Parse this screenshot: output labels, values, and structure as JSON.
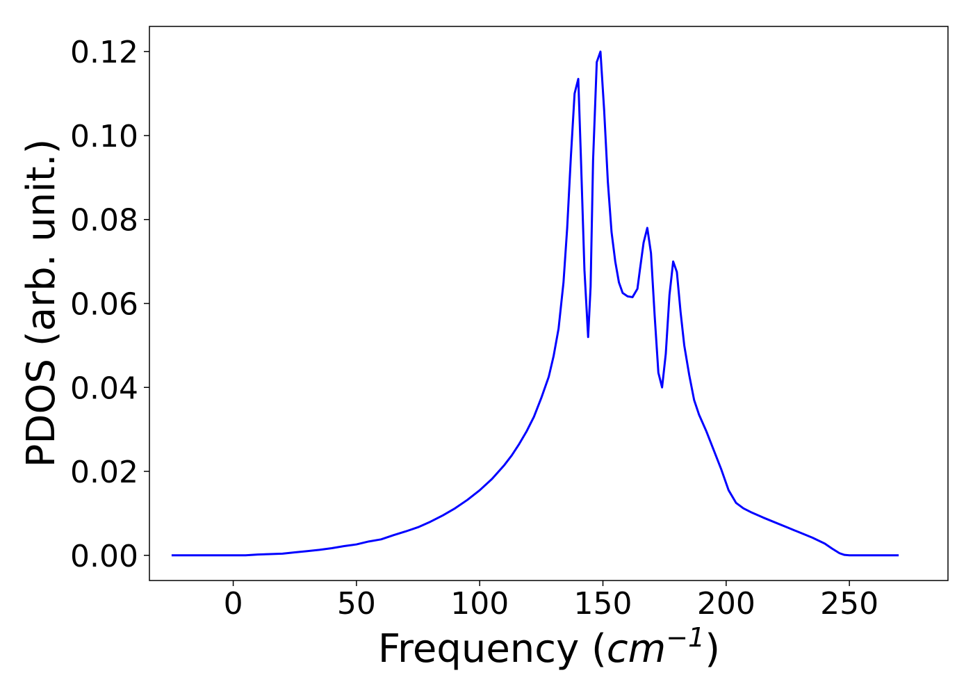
{
  "chart_data": {
    "type": "line",
    "xlabel": {
      "prefix": "Frequency (",
      "unit_base": "cm",
      "unit_exp": "−1",
      "suffix": ")"
    },
    "ylabel": "PDOS (arb. unit.)",
    "xlim": [
      -34,
      290
    ],
    "ylim": [
      -0.006,
      0.126
    ],
    "x_ticks": [
      0,
      50,
      100,
      150,
      200,
      250
    ],
    "x_tick_labels": [
      "0",
      "50",
      "100",
      "150",
      "200",
      "250"
    ],
    "y_ticks": [
      0.0,
      0.02,
      0.04,
      0.06,
      0.08,
      0.1,
      0.12
    ],
    "y_tick_labels": [
      "0.00",
      "0.02",
      "0.04",
      "0.06",
      "0.08",
      "0.10",
      "0.12"
    ],
    "grid": false,
    "legend": "none",
    "series": [
      {
        "color": "#0000ff",
        "x": [
          -25,
          -10,
          0,
          5,
          10,
          15,
          20,
          25,
          30,
          35,
          40,
          45,
          50,
          55,
          60,
          65,
          70,
          75,
          80,
          85,
          90,
          95,
          100,
          105,
          110,
          113,
          116,
          119,
          122,
          125,
          128,
          130,
          132,
          134,
          135.5,
          137,
          138.5,
          140,
          141,
          142.5,
          144,
          145,
          146,
          147.5,
          149,
          150.5,
          152,
          153.5,
          155,
          156.5,
          158,
          160,
          162,
          164,
          165,
          166.5,
          168,
          169.5,
          171,
          172.5,
          174,
          175.5,
          177,
          178.5,
          180,
          181.5,
          183,
          185,
          187,
          189,
          192,
          195,
          198,
          201,
          204,
          207,
          210,
          215,
          220,
          225,
          230,
          235,
          240,
          243,
          246,
          248,
          250,
          255,
          260,
          265,
          270
        ],
        "y": [
          0,
          0,
          0,
          0,
          0.0002,
          0.0003,
          0.0004,
          0.0007,
          0.001,
          0.0013,
          0.0017,
          0.0022,
          0.0026,
          0.0033,
          0.0038,
          0.0048,
          0.0057,
          0.0067,
          0.008,
          0.0095,
          0.0112,
          0.0132,
          0.0155,
          0.0182,
          0.0215,
          0.0238,
          0.0265,
          0.0295,
          0.033,
          0.0375,
          0.0425,
          0.0475,
          0.054,
          0.065,
          0.078,
          0.095,
          0.11,
          0.1135,
          0.096,
          0.068,
          0.052,
          0.064,
          0.094,
          0.1175,
          0.12,
          0.106,
          0.089,
          0.077,
          0.07,
          0.065,
          0.0625,
          0.0617,
          0.0615,
          0.0635,
          0.068,
          0.0745,
          0.078,
          0.072,
          0.057,
          0.0435,
          0.04,
          0.048,
          0.062,
          0.07,
          0.0675,
          0.058,
          0.05,
          0.043,
          0.037,
          0.0335,
          0.0295,
          0.025,
          0.0205,
          0.0155,
          0.0125,
          0.0112,
          0.0103,
          0.009,
          0.0078,
          0.0066,
          0.0054,
          0.0042,
          0.0028,
          0.0016,
          0.0005,
          0.0001,
          0,
          0,
          0,
          0,
          0
        ]
      }
    ]
  }
}
